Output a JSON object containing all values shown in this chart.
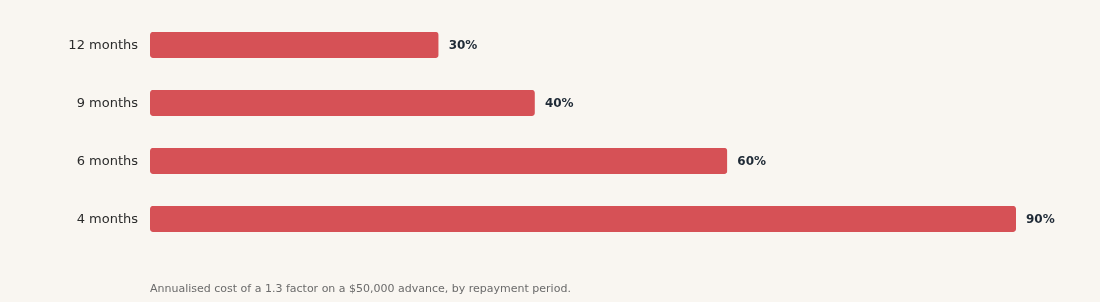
{
  "chart_data": {
    "type": "bar",
    "orientation": "horizontal",
    "categories": [
      "12 months",
      "9 months",
      "6 months",
      "4 months"
    ],
    "values": [
      30,
      40,
      60,
      90
    ],
    "value_labels": [
      "30%",
      "40%",
      "60%",
      "90%"
    ],
    "color": "#d65156",
    "xlim": [
      0,
      90
    ],
    "annotations": [
      "Annualised cost of a 1.3 factor on a $50,000 advance, by repayment period."
    ]
  }
}
